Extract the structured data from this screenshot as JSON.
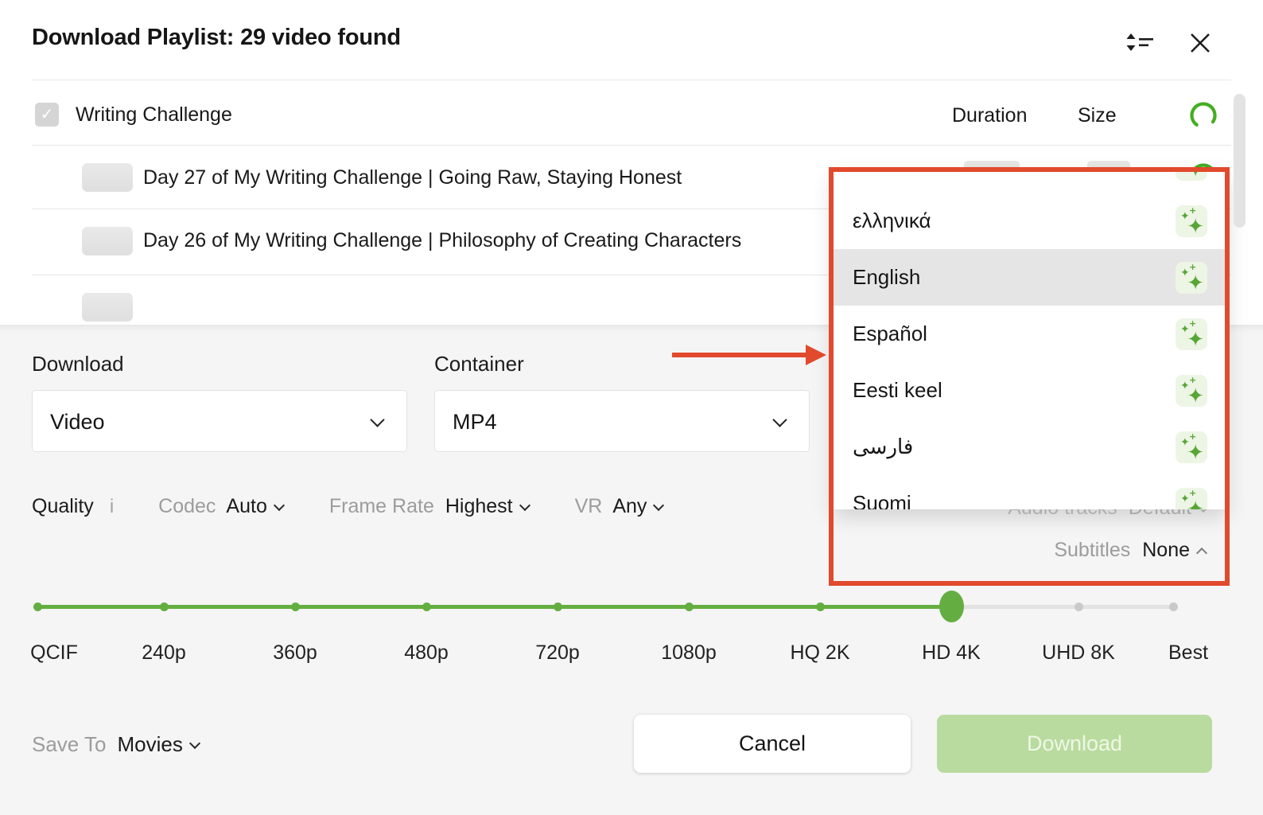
{
  "header": {
    "title": "Download Playlist: 29 video found"
  },
  "list": {
    "playlist_name": "Writing Challenge",
    "columns": {
      "duration": "Duration",
      "size": "Size"
    },
    "videos": [
      {
        "title": "Day 27 of My Writing Challenge | Going Raw, Staying Honest"
      },
      {
        "title": "Day 26 of My Writing Challenge | Philosophy of Creating Characters"
      },
      {
        "title": ""
      }
    ]
  },
  "settings": {
    "download_label": "Download",
    "download_value": "Video",
    "container_label": "Container",
    "container_value": "MP4",
    "quality_label": "Quality",
    "quality_info": "i",
    "codec_label": "Codec",
    "codec_value": "Auto",
    "frame_rate_label": "Frame Rate",
    "frame_rate_value": "Highest",
    "vr_label": "VR",
    "vr_value": "Any",
    "audio_tracks_label": "Audio tracks",
    "audio_tracks_value": "Default",
    "subtitles_label": "Subtitles",
    "subtitles_value": "None",
    "save_to_label": "Save To",
    "save_to_value": "Movies"
  },
  "slider": {
    "selected": "HD 4K",
    "stops": [
      {
        "label": "QCIF",
        "state": "filled"
      },
      {
        "label": "240p",
        "state": "filled"
      },
      {
        "label": "360p",
        "state": "filled"
      },
      {
        "label": "480p",
        "state": "filled"
      },
      {
        "label": "720p",
        "state": "filled"
      },
      {
        "label": "1080p",
        "state": "filled"
      },
      {
        "label": "HQ 2K",
        "state": "filled"
      },
      {
        "label": "HD 4K",
        "state": "active"
      },
      {
        "label": "UHD 8K",
        "state": "rest"
      },
      {
        "label": "Best",
        "state": "rest"
      }
    ]
  },
  "language_menu": {
    "items": [
      {
        "label": "",
        "partial": true
      },
      {
        "label": "ελληνικά"
      },
      {
        "label": "English",
        "selected": true
      },
      {
        "label": "Español"
      },
      {
        "label": "Eesti keel"
      },
      {
        "label": "فارسی"
      },
      {
        "label": "Suomi"
      }
    ]
  },
  "buttons": {
    "cancel": "Cancel",
    "download": "Download"
  },
  "colors": {
    "accent_green": "#64ae41",
    "annotation_red": "#e14a2c",
    "light_green_bg": "#edf5e5",
    "selected_row": "#e5e5e5"
  }
}
